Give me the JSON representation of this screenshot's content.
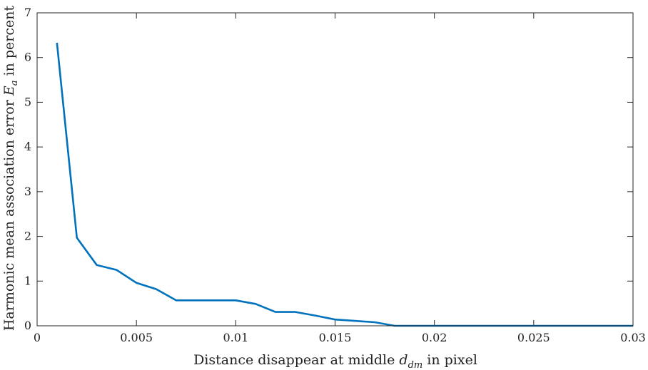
{
  "chart_data": {
    "type": "line",
    "xlabel": {
      "text": "Distance disappear at middle",
      "symbol": "d",
      "subscript": "dm",
      "suffix": "in pixel"
    },
    "ylabel": {
      "text": "Harmonic mean association error",
      "symbol": "E",
      "subscript": "a",
      "suffix": "in percent"
    },
    "xlim": [
      0,
      0.03
    ],
    "ylim": [
      0,
      7
    ],
    "xticks": [
      0,
      0.005,
      0.01,
      0.015,
      0.02,
      0.025,
      0.03
    ],
    "xtick_labels": [
      "0",
      "0.005",
      "0.01",
      "0.015",
      "0.02",
      "0.025",
      "0.03"
    ],
    "yticks": [
      0,
      1,
      2,
      3,
      4,
      5,
      6,
      7
    ],
    "ytick_labels": [
      "0",
      "1",
      "2",
      "3",
      "4",
      "5",
      "6",
      "7"
    ],
    "grid": false,
    "color": "#0072BD",
    "series": [
      {
        "x": [
          0.001,
          0.002,
          0.003,
          0.004,
          0.005,
          0.006,
          0.007,
          0.008,
          0.009,
          0.01,
          0.011,
          0.012,
          0.013,
          0.014,
          0.015,
          0.016,
          0.017,
          0.018,
          0.019,
          0.02,
          0.021,
          0.022,
          0.023,
          0.024,
          0.025,
          0.026,
          0.027,
          0.028,
          0.029,
          0.03
        ],
        "y": [
          6.33,
          1.97,
          1.36,
          1.25,
          0.96,
          0.82,
          0.57,
          0.57,
          0.57,
          0.57,
          0.49,
          0.31,
          0.31,
          0.23,
          0.14,
          0.11,
          0.08,
          0.0,
          0.0,
          0.0,
          0.0,
          0.0,
          0.0,
          0.0,
          0.0,
          0.0,
          0.0,
          0.0,
          0.0,
          0.0
        ]
      }
    ]
  }
}
